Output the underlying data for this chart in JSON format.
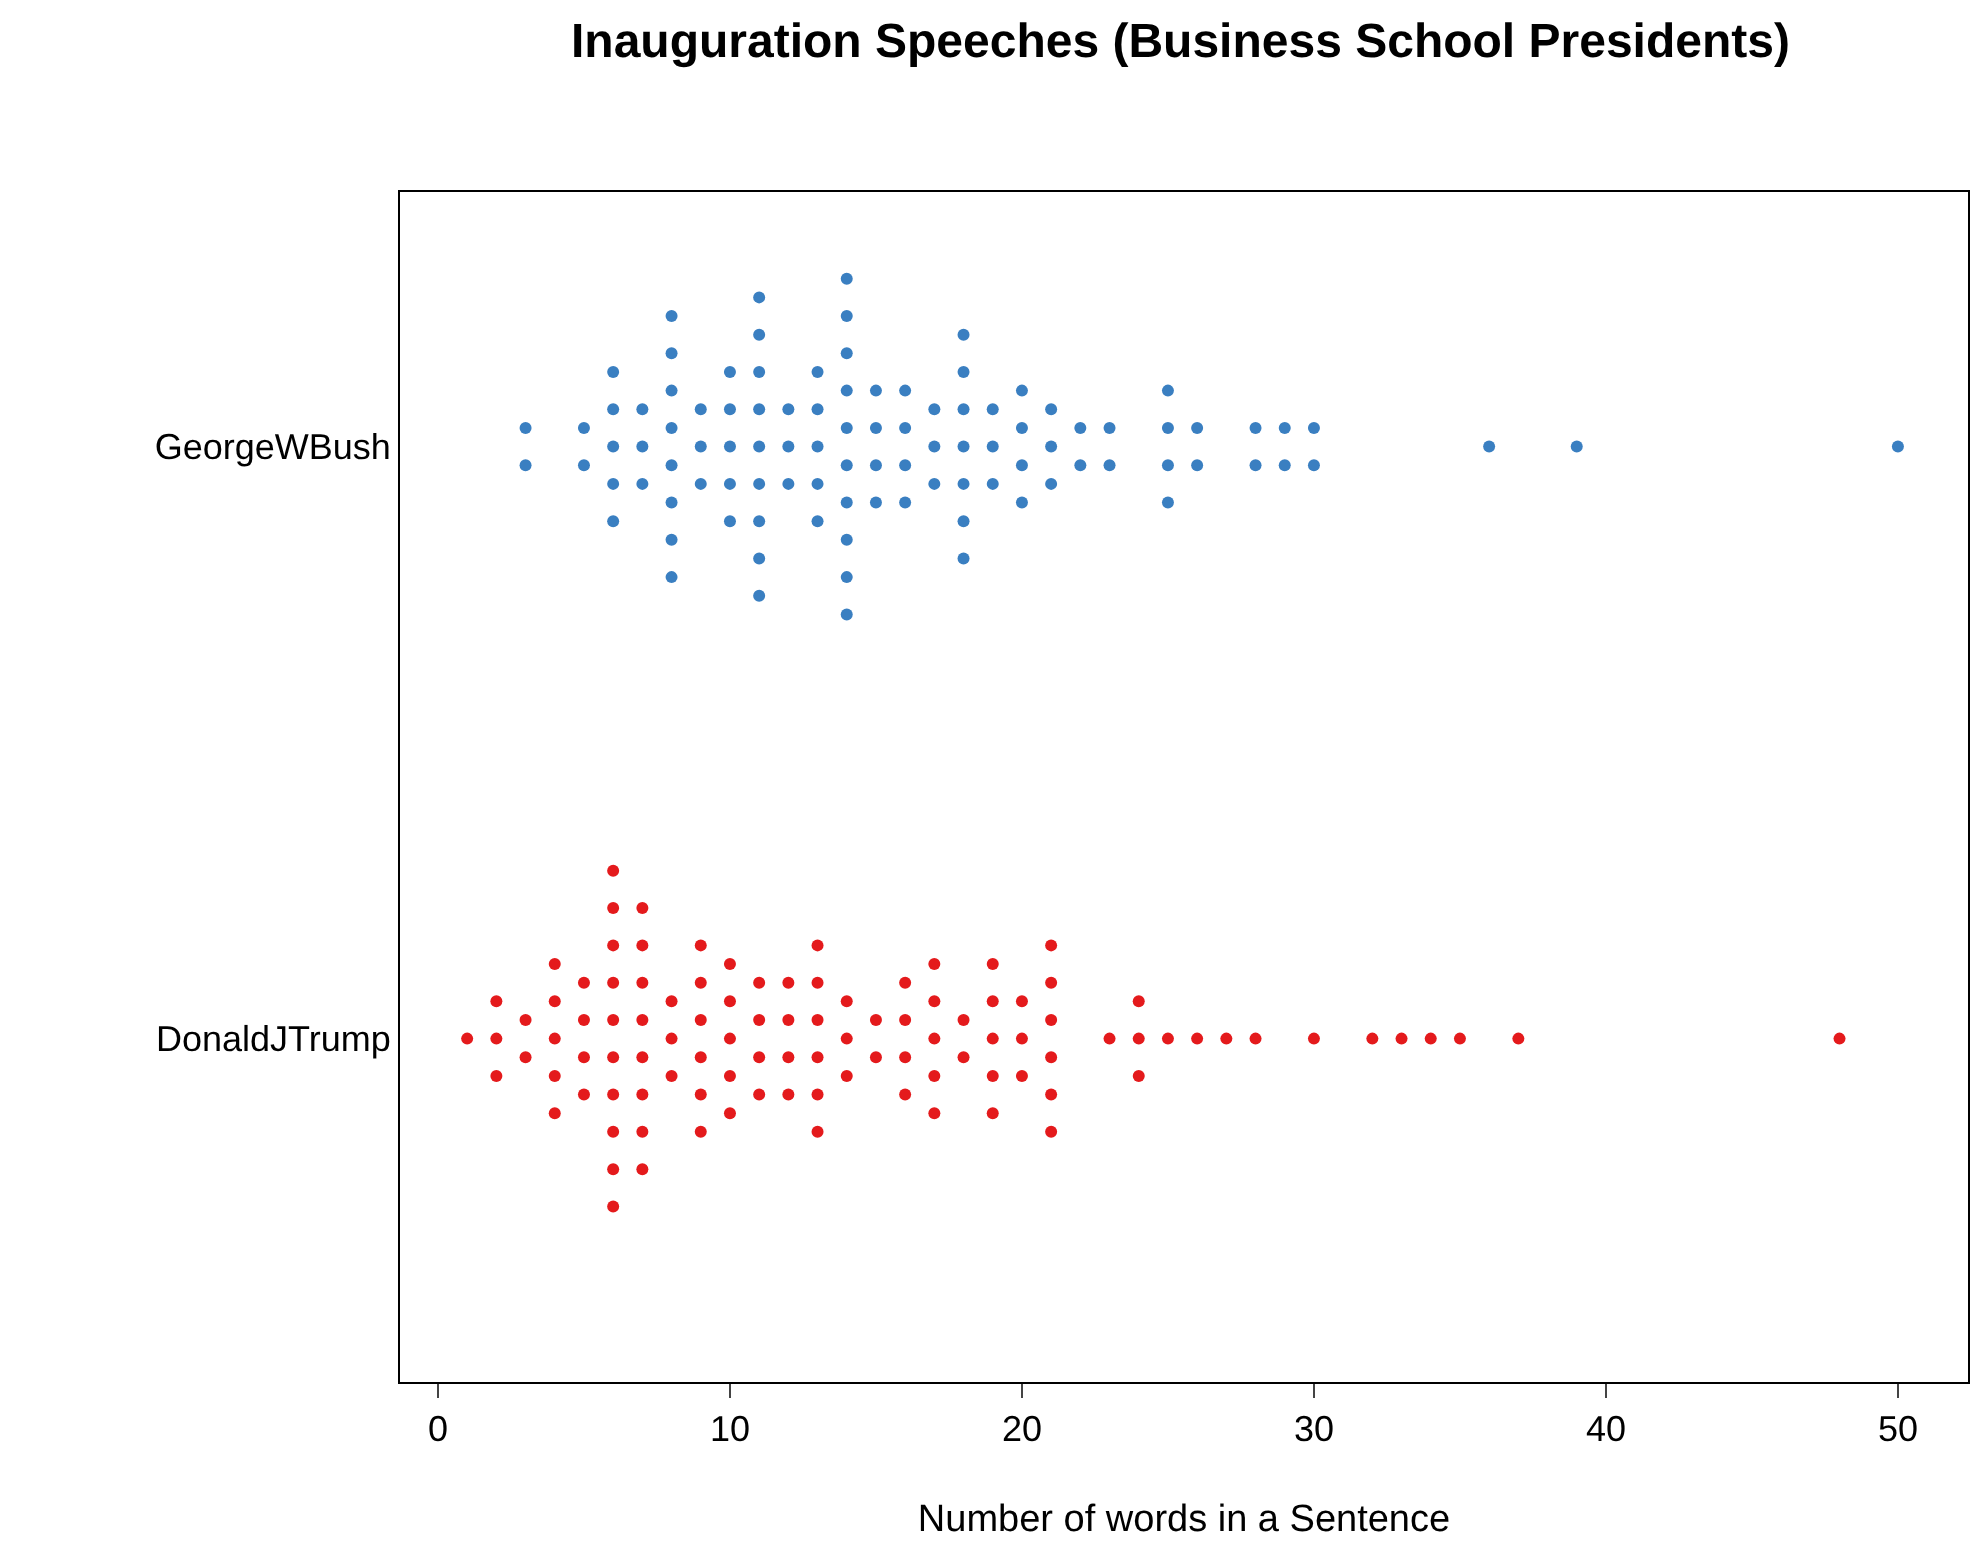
{
  "chart_data": {
    "type": "scatter",
    "orientation": "horizontal",
    "title": "Inauguration Speeches (Business School Presidents)",
    "xlabel": "Number of words in a Sentence",
    "categories": [
      "GeorgeWBush",
      "DonaldJTrump"
    ],
    "series": [
      {
        "color": "#3a7fc1",
        "values": [
          3,
          3,
          5,
          5,
          6,
          6,
          6,
          6,
          6,
          7,
          7,
          7,
          8,
          8,
          8,
          8,
          8,
          8,
          8,
          8,
          9,
          9,
          9,
          10,
          10,
          10,
          10,
          10,
          11,
          11,
          11,
          11,
          11,
          11,
          11,
          11,
          11,
          12,
          12,
          12,
          13,
          13,
          13,
          13,
          13,
          14,
          14,
          14,
          14,
          14,
          14,
          14,
          14,
          14,
          14,
          15,
          15,
          15,
          15,
          16,
          16,
          16,
          16,
          17,
          17,
          17,
          18,
          18,
          18,
          18,
          18,
          18,
          18,
          19,
          19,
          19,
          20,
          20,
          20,
          20,
          21,
          21,
          21,
          22,
          22,
          23,
          23,
          25,
          25,
          25,
          25,
          26,
          26,
          28,
          28,
          29,
          29,
          30,
          30,
          36,
          39,
          50
        ],
        "x": [
          "GeorgeWBush",
          "GeorgeWBush",
          "GeorgeWBush",
          "GeorgeWBush",
          "GeorgeWBush",
          "GeorgeWBush",
          "GeorgeWBush",
          "GeorgeWBush",
          "GeorgeWBush",
          "GeorgeWBush",
          "GeorgeWBush",
          "GeorgeWBush",
          "GeorgeWBush",
          "GeorgeWBush",
          "GeorgeWBush",
          "GeorgeWBush",
          "GeorgeWBush",
          "GeorgeWBush",
          "GeorgeWBush",
          "GeorgeWBush",
          "GeorgeWBush",
          "GeorgeWBush",
          "GeorgeWBush",
          "GeorgeWBush",
          "GeorgeWBush",
          "GeorgeWBush",
          "GeorgeWBush",
          "GeorgeWBush",
          "GeorgeWBush",
          "GeorgeWBush",
          "GeorgeWBush",
          "GeorgeWBush",
          "GeorgeWBush",
          "GeorgeWBush",
          "GeorgeWBush",
          "GeorgeWBush",
          "GeorgeWBush",
          "GeorgeWBush",
          "GeorgeWBush",
          "GeorgeWBush",
          "GeorgeWBush",
          "GeorgeWBush",
          "GeorgeWBush",
          "GeorgeWBush",
          "GeorgeWBush",
          "GeorgeWBush",
          "GeorgeWBush",
          "GeorgeWBush",
          "GeorgeWBush",
          "GeorgeWBush",
          "GeorgeWBush",
          "GeorgeWBush",
          "GeorgeWBush",
          "GeorgeWBush",
          "GeorgeWBush",
          "GeorgeWBush",
          "GeorgeWBush",
          "GeorgeWBush",
          "GeorgeWBush",
          "GeorgeWBush",
          "GeorgeWBush",
          "GeorgeWBush",
          "GeorgeWBush",
          "GeorgeWBush",
          "GeorgeWBush",
          "GeorgeWBush",
          "GeorgeWBush",
          "GeorgeWBush",
          "GeorgeWBush",
          "GeorgeWBush",
          "GeorgeWBush",
          "GeorgeWBush",
          "GeorgeWBush",
          "GeorgeWBush",
          "GeorgeWBush",
          "GeorgeWBush",
          "GeorgeWBush",
          "GeorgeWBush",
          "GeorgeWBush",
          "GeorgeWBush",
          "GeorgeWBush",
          "GeorgeWBush",
          "GeorgeWBush",
          "GeorgeWBush",
          "GeorgeWBush",
          "GeorgeWBush",
          "GeorgeWBush",
          "GeorgeWBush",
          "GeorgeWBush",
          "GeorgeWBush",
          "GeorgeWBush",
          "GeorgeWBush",
          "GeorgeWBush",
          "GeorgeWBush",
          "GeorgeWBush",
          "GeorgeWBush",
          "GeorgeWBush",
          "GeorgeWBush",
          "GeorgeWBush",
          "GeorgeWBush",
          "GeorgeWBush",
          "GeorgeWBush"
        ]
      },
      {
        "color": "#e41a1c",
        "values": [
          1,
          2,
          2,
          2,
          3,
          3,
          4,
          4,
          4,
          4,
          4,
          5,
          5,
          5,
          5,
          6,
          6,
          6,
          6,
          6,
          6,
          6,
          6,
          6,
          6,
          7,
          7,
          7,
          7,
          7,
          7,
          7,
          7,
          8,
          8,
          8,
          9,
          9,
          9,
          9,
          9,
          9,
          10,
          10,
          10,
          10,
          10,
          11,
          11,
          11,
          11,
          12,
          12,
          12,
          12,
          13,
          13,
          13,
          13,
          13,
          13,
          14,
          14,
          14,
          15,
          15,
          16,
          16,
          16,
          16,
          17,
          17,
          17,
          17,
          17,
          18,
          18,
          19,
          19,
          19,
          19,
          19,
          20,
          20,
          20,
          21,
          21,
          21,
          21,
          21,
          21,
          23,
          24,
          24,
          24,
          25,
          26,
          27,
          28,
          30,
          32,
          33,
          34,
          35,
          37,
          48
        ],
        "x": [
          "DonaldJTrump",
          "DonaldJTrump",
          "DonaldJTrump",
          "DonaldJTrump",
          "DonaldJTrump",
          "DonaldJTrump",
          "DonaldJTrump",
          "DonaldJTrump",
          "DonaldJTrump",
          "DonaldJTrump",
          "DonaldJTrump",
          "DonaldJTrump",
          "DonaldJTrump",
          "DonaldJTrump",
          "DonaldJTrump",
          "DonaldJTrump",
          "DonaldJTrump",
          "DonaldJTrump",
          "DonaldJTrump",
          "DonaldJTrump",
          "DonaldJTrump",
          "DonaldJTrump",
          "DonaldJTrump",
          "DonaldJTrump",
          "DonaldJTrump",
          "DonaldJTrump",
          "DonaldJTrump",
          "DonaldJTrump",
          "DonaldJTrump",
          "DonaldJTrump",
          "DonaldJTrump",
          "DonaldJTrump",
          "DonaldJTrump",
          "DonaldJTrump",
          "DonaldJTrump",
          "DonaldJTrump",
          "DonaldJTrump",
          "DonaldJTrump",
          "DonaldJTrump",
          "DonaldJTrump",
          "DonaldJTrump",
          "DonaldJTrump",
          "DonaldJTrump",
          "DonaldJTrump",
          "DonaldJTrump",
          "DonaldJTrump",
          "DonaldJTrump",
          "DonaldJTrump",
          "DonaldJTrump",
          "DonaldJTrump",
          "DonaldJTrump",
          "DonaldJTrump",
          "DonaldJTrump",
          "DonaldJTrump",
          "DonaldJTrump",
          "DonaldJTrump",
          "DonaldJTrump",
          "DonaldJTrump",
          "DonaldJTrump",
          "DonaldJTrump",
          "DonaldJTrump",
          "DonaldJTrump",
          "DonaldJTrump",
          "DonaldJTrump",
          "DonaldJTrump",
          "DonaldJTrump",
          "DonaldJTrump",
          "DonaldJTrump",
          "DonaldJTrump",
          "DonaldJTrump",
          "DonaldJTrump",
          "DonaldJTrump",
          "DonaldJTrump",
          "DonaldJTrump",
          "DonaldJTrump",
          "DonaldJTrump",
          "DonaldJTrump",
          "DonaldJTrump",
          "DonaldJTrump",
          "DonaldJTrump",
          "DonaldJTrump",
          "DonaldJTrump",
          "DonaldJTrump",
          "DonaldJTrump",
          "DonaldJTrump",
          "DonaldJTrump",
          "DonaldJTrump",
          "DonaldJTrump",
          "DonaldJTrump",
          "DonaldJTrump",
          "DonaldJTrump",
          "DonaldJTrump",
          "DonaldJTrump",
          "DonaldJTrump",
          "DonaldJTrump",
          "DonaldJTrump",
          "DonaldJTrump",
          "DonaldJTrump",
          "DonaldJTrump",
          "DonaldJTrump",
          "DonaldJTrump",
          "DonaldJTrump",
          "DonaldJTrump",
          "DonaldJTrump",
          "DonaldJTrump",
          "DonaldJTrump"
        ]
      }
    ],
    "xlim": [
      -1.3,
      52.4
    ],
    "xticks": [
      0,
      10,
      20,
      30,
      40,
      50
    ],
    "marker": "circle",
    "grid": false
  }
}
